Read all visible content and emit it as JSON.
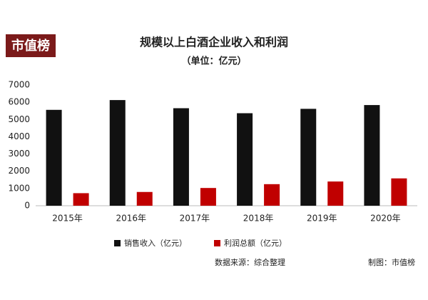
{
  "logo": "市值榜",
  "chart_data": {
    "type": "bar",
    "title": "规模以上白酒企业收入和利润",
    "subtitle": "（单位：亿元）",
    "categories": [
      "2015年",
      "2016年",
      "2017年",
      "2018年",
      "2019年",
      "2020年"
    ],
    "series": [
      {
        "name": "销售收入（亿元）",
        "color": "#111111",
        "values": [
          5559,
          6126,
          5654,
          5364,
          5618,
          5837
        ]
      },
      {
        "name": "利润总额（亿元）",
        "color": "#c00000",
        "values": [
          727,
          797,
          1028,
          1250,
          1404,
          1585
        ]
      }
    ],
    "ylim": [
      0,
      7000
    ],
    "yticks": [
      0,
      1000,
      2000,
      3000,
      4000,
      5000,
      6000,
      7000
    ],
    "grid": false,
    "legend": "bottom"
  },
  "source": {
    "data": "数据来源：综合整理",
    "made_by": "制图：市值榜"
  }
}
